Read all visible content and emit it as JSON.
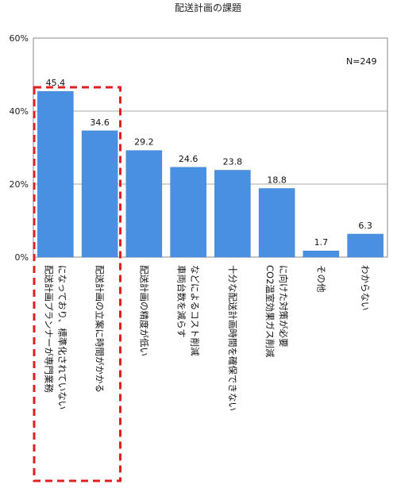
{
  "chart_data": {
    "type": "bar",
    "title": "配送計画の課題",
    "annotation": "N=249",
    "categories": [
      [
        "配送計画プランナーが専門業務",
        "になっており、標準化されていない"
      ],
      [
        "配送計画の立案に時間がかかる"
      ],
      [
        "配送計画の精度が低い"
      ],
      [
        "車両台数を減らす",
        "などによるコスト削減"
      ],
      [
        "十分な配送計画時間を確保できない"
      ],
      [
        "CO2温室効果ガス削減",
        "に向けた対策が必要"
      ],
      [
        "その他"
      ],
      [
        "わからない"
      ]
    ],
    "values": [
      45.4,
      34.6,
      29.2,
      24.6,
      23.8,
      18.8,
      1.7,
      6.3
    ],
    "value_labels": [
      "45.4",
      "34.6",
      "29.2",
      "24.6",
      "23.8",
      "18.8",
      "1.7",
      "6.3"
    ],
    "yticks": [
      0,
      20,
      40,
      60
    ],
    "ytick_labels": [
      "0%",
      "20%",
      "40%",
      "60%"
    ],
    "ylim": [
      0,
      60
    ],
    "grid": "horizontal",
    "highlight": {
      "indices": [
        0,
        1
      ],
      "style": "red-dashed-box"
    },
    "colors": {
      "bar": "#4a90e2",
      "bar_edge": "#3a7ccc",
      "grid": "#aaaaaa",
      "highlight": "#e02020"
    }
  }
}
